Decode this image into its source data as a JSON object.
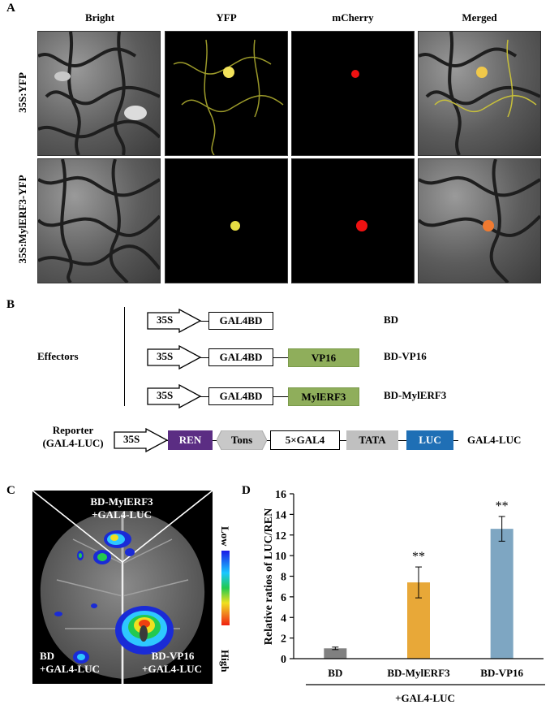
{
  "panel_a": {
    "label": "A",
    "columns": [
      "Bright",
      "YFP",
      "mCherry",
      "Merged"
    ],
    "rows": [
      "35S:YFP",
      "35S:MylERF3-YFP"
    ]
  },
  "panel_b": {
    "label": "B",
    "effectors_label": "Effectors",
    "reporter_label_1": "Reporter",
    "reporter_label_2": "(GAL4-LUC)",
    "promoter": "35S",
    "gal4bd": "GAL4BD",
    "vp16": "VP16",
    "mylerf3": "MylERF3",
    "names": [
      "BD",
      "BD-VP16",
      "BD-MylERF3"
    ],
    "reporter_parts": {
      "ren": "REN",
      "tons": "Tons",
      "gal4": "5×GAL4",
      "tata": "TATA",
      "luc": "LUC"
    },
    "reporter_name": "GAL4-LUC",
    "colors": {
      "ren": "#5b2d83",
      "tons": "#c8c8c8",
      "tata": "#c0c0c0",
      "luc": "#1f6fb5",
      "green": "#8fae5b"
    }
  },
  "panel_c": {
    "label": "C",
    "top_label_1": "BD-MylERF3",
    "top_label_2": "+GAL4-LUC",
    "left_label_1": "BD",
    "left_label_2": "+GAL4-LUC",
    "right_label_1": "BD-VP16",
    "right_label_2": "+GAL4-LUC",
    "scale_low": "Low",
    "scale_high": "High"
  },
  "panel_d": {
    "label": "D",
    "group_label": "+GAL4-LUC"
  },
  "chart_data": {
    "type": "bar",
    "categories": [
      "BD",
      "BD-MylERF3",
      "BD-VP16"
    ],
    "values": [
      1.0,
      7.4,
      12.6
    ],
    "errors": [
      0.12,
      1.5,
      1.2
    ],
    "significance": [
      "",
      "**",
      "**"
    ],
    "colors": [
      "#808080",
      "#e8a838",
      "#7ea6c2"
    ],
    "ylabel": "Relative ratios of LUC/REN",
    "xlabel": "",
    "ylim": [
      0,
      16
    ],
    "yticks": [
      0,
      2,
      4,
      6,
      8,
      10,
      12,
      14,
      16
    ],
    "grid": false
  }
}
